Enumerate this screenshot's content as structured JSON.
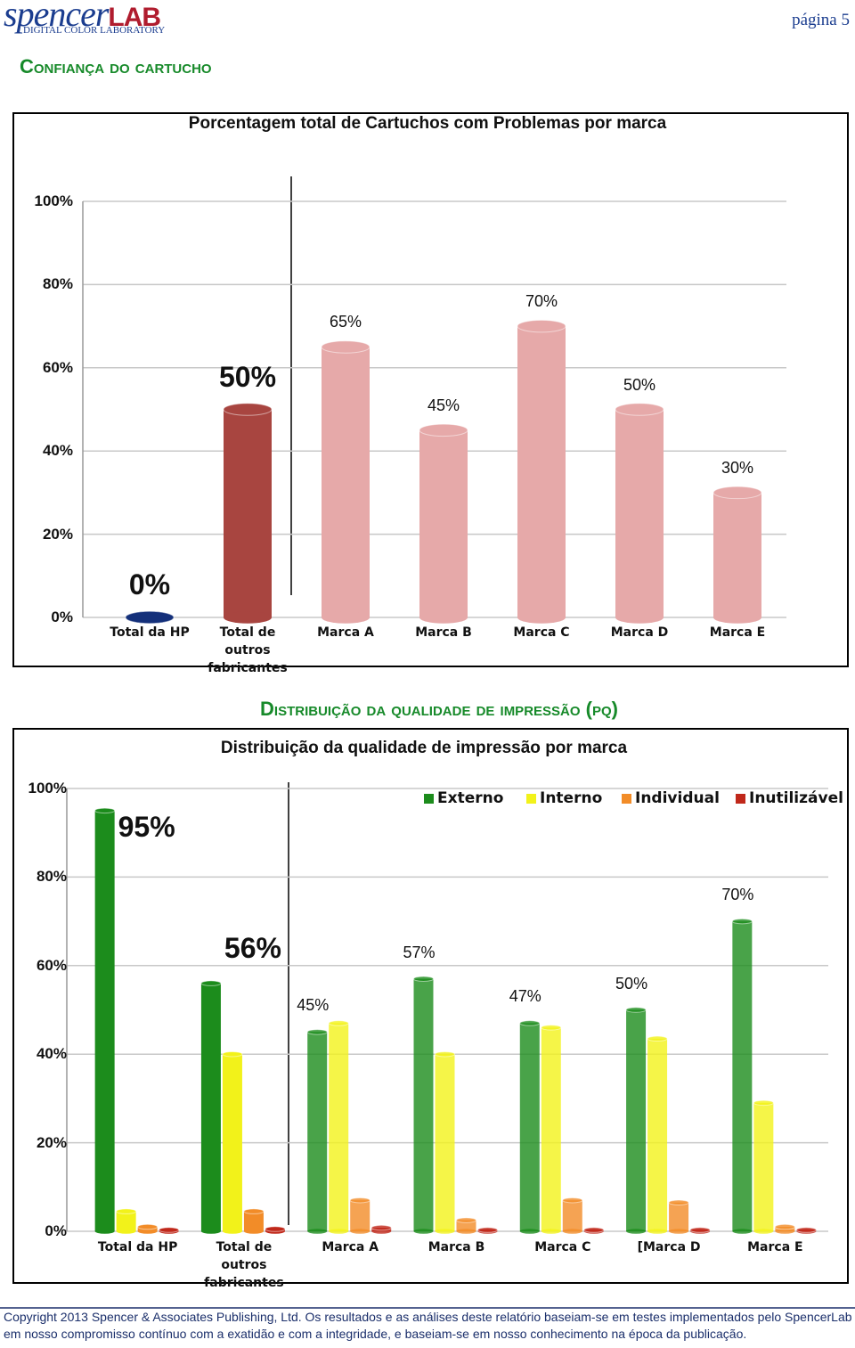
{
  "header": {
    "logo": "spencer",
    "logo_lab": "LAB",
    "logo_tagline": "DIGITAL COLOR LABORATORY",
    "page": "página 5"
  },
  "section_titles": [
    "Confiança do cartucho",
    "Distribuição da qualidade de impressão (pq)"
  ],
  "chart_data": [
    {
      "type": "bar",
      "title": "Porcentagem total de Cartuchos com Problemas por marca",
      "categories": [
        "Total da HP",
        "Total de outros fabricantes",
        "Marca A",
        "Marca B",
        "Marca C",
        "Marca D",
        "Marca E"
      ],
      "values": [
        0,
        50,
        65,
        45,
        70,
        50,
        30
      ],
      "value_labels": [
        "0%",
        "50%",
        "65%",
        "45%",
        "70%",
        "50%",
        "30%"
      ],
      "colors": [
        "#14307a",
        "#a84540",
        "#e6a9a9",
        "#e6a9a9",
        "#e6a9a9",
        "#e6a9a9",
        "#e6a9a9"
      ],
      "ylim": [
        0,
        100
      ],
      "yticks": [
        {
          "value": 0,
          "label": "0%"
        },
        {
          "value": 20,
          "label": "20%"
        },
        {
          "value": 40,
          "label": "40%"
        },
        {
          "value": 60,
          "label": "60%"
        },
        {
          "value": 80,
          "label": "80%"
        },
        {
          "value": 100,
          "label": "100%"
        }
      ],
      "grid": true
    },
    {
      "type": "grouped-bar",
      "title": "Distribuição da qualidade de impressão por marca",
      "categories": [
        "Total da HP",
        "Total de outros fabricantes",
        "Marca A",
        "Marca B",
        "Marca C",
        "[Marca D",
        "Marca E"
      ],
      "series": [
        {
          "name": "Externo",
          "color": "#1c8c1c",
          "values": [
            95,
            56,
            45,
            57,
            47,
            50,
            70
          ],
          "value_labels": [
            "95%",
            "56%",
            "45%",
            "57%",
            "47%",
            "50%",
            "70%"
          ]
        },
        {
          "name": "Interno",
          "color": "#f2f21a",
          "values": [
            4.5,
            40,
            47,
            40,
            46,
            43.5,
            29
          ]
        },
        {
          "name": "Individual",
          "color": "#f28c28",
          "values": [
            1,
            4.5,
            7,
            2.5,
            7,
            6.5,
            1
          ]
        },
        {
          "name": "Inutilizável",
          "color": "#c0281a",
          "values": [
            0.3,
            0.5,
            0.8,
            0.3,
            0.3,
            0.3,
            0.3
          ]
        }
      ],
      "ylim": [
        0,
        100
      ],
      "yticks": [
        {
          "value": 0,
          "label": "0%"
        },
        {
          "value": 20,
          "label": "20%"
        },
        {
          "value": 40,
          "label": "40%"
        },
        {
          "value": 60,
          "label": "60%"
        },
        {
          "value": 80,
          "label": "80%"
        },
        {
          "value": 100,
          "label": "100%"
        }
      ],
      "grid": true,
      "legend": "top-right"
    }
  ],
  "footer": [
    "Copyright 2013 Spencer & Associates Publishing, Ltd. Os resultados e as análises deste relatório baseiam-se em testes implementados pelo SpencerLab",
    "em nosso compromisso contínuo com a exatidão e com a integridade, e baseiam-se em nosso conhecimento na época da publicação."
  ]
}
